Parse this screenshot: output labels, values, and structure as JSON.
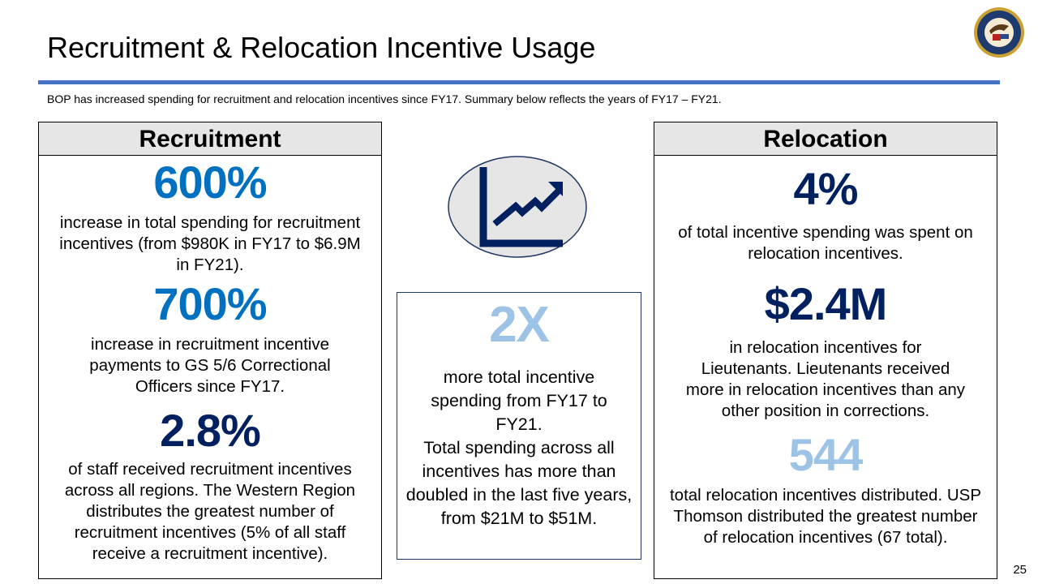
{
  "title": "Recruitment & Relocation Incentive Usage",
  "subtitle": "BOP has increased spending for recruitment and relocation incentives since FY17. Summary below reflects the years of FY17 – FY21.",
  "seal_text": "Department of Justice · Federal Bureau of Prisons",
  "colors": {
    "bright_blue": "#0070C0",
    "navy": "#002060",
    "light_blue": "#9DC3E6",
    "rule": "#4472C4"
  },
  "recruitment": {
    "heading": "Recruitment",
    "stats": [
      {
        "value": "600%",
        "text": "increase in total spending for recruitment incentives (from $980K in FY17 to $6.9M in FY21)."
      },
      {
        "value": "700%",
        "text": "increase in recruitment incentive payments to GS 5/6 Correctional Officers since FY17."
      },
      {
        "value": "2.8%",
        "text": "of staff received recruitment incentives across all regions. The Western Region distributes the greatest number of recruitment incentives (5% of all staff receive a recruitment incentive)."
      }
    ]
  },
  "center": {
    "icon": "line-chart-up-icon",
    "value": "2X",
    "text1": "more total incentive spending from FY17 to FY21.",
    "text2": "Total spending across all incentives has more than doubled in the last five years, from $21M to $51M."
  },
  "relocation": {
    "heading": "Relocation",
    "stats": [
      {
        "value": "4%",
        "text": "of total incentive spending was spent on relocation incentives."
      },
      {
        "value": "$2.4M",
        "text": "in relocation incentives for Lieutenants. Lieutenants received more in relocation incentives than any other position in corrections."
      },
      {
        "value": "544",
        "text": "total relocation incentives distributed. USP Thomson distributed the greatest number of relocation incentives (67 total)."
      }
    ]
  },
  "page_number": "25"
}
